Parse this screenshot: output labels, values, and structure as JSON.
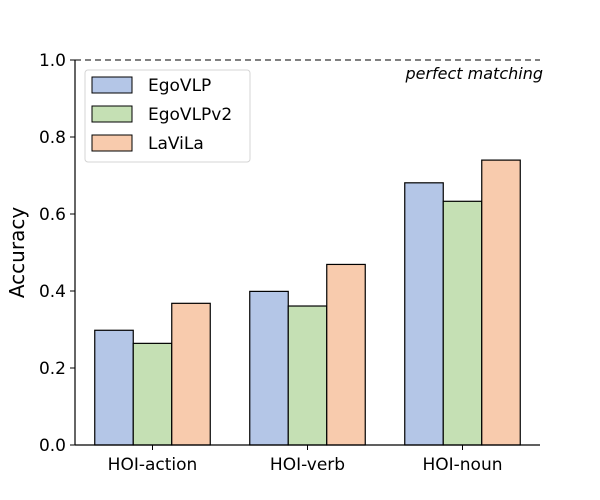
{
  "chart_data": {
    "type": "bar",
    "categories": [
      "HOI-action",
      "HOI-verb",
      "HOI-noun"
    ],
    "series": [
      {
        "name": "EgoVLP",
        "values": [
          0.298,
          0.399,
          0.681
        ],
        "color": "#b4c6e7"
      },
      {
        "name": "EgoVLPv2",
        "values": [
          0.264,
          0.361,
          0.633
        ],
        "color": "#c5e0b4"
      },
      {
        "name": "LaViLa",
        "values": [
          0.368,
          0.469,
          0.74
        ],
        "color": "#f8cbad"
      }
    ],
    "ylabel": "Accuracy",
    "xlabel": "",
    "ylim": [
      0,
      1.0
    ],
    "yticks": [
      "0.0",
      "0.2",
      "0.4",
      "0.6",
      "0.8",
      "1.0"
    ],
    "reference_line": {
      "value": 1.0,
      "label": "perfect matching",
      "style": "dashed"
    },
    "legend_position": "top-left",
    "grid": false
  }
}
